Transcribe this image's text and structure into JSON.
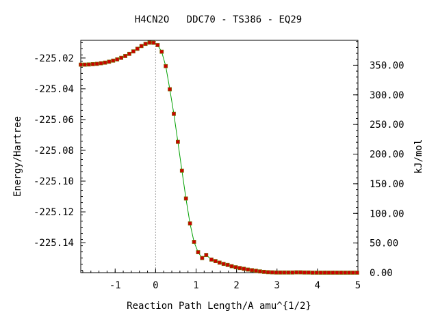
{
  "chart_data": {
    "type": "line",
    "title": "H4CN2O   DDC70 - TS386 - EQ29",
    "xlabel": "Reaction Path Length/A amu^{1/2}",
    "ylabel": "Energy/Hartree",
    "y2label": "kJ/mol",
    "xlim": [
      -1.85,
      5.0
    ],
    "ylim": [
      -225.1595,
      -225.0085
    ],
    "y2lim": [
      0.0,
      392.0
    ],
    "x_ticks": [
      -1,
      0,
      1,
      2,
      3,
      4,
      5
    ],
    "y_ticks": [
      -225.02,
      -225.04,
      -225.06,
      -225.08,
      -225.1,
      -225.12,
      -225.14
    ],
    "y2_ticks": [
      0.0,
      50.0,
      100.0,
      150.0,
      200.0,
      250.0,
      300.0,
      350.0
    ],
    "x_tick_labels": [
      "-1",
      "0",
      "1",
      "2",
      "3",
      "4",
      "5"
    ],
    "y_tick_labels": [
      "-225.02",
      "-225.04",
      "-225.06",
      "-225.08",
      "-225.10",
      "-225.12",
      "-225.14"
    ],
    "y2_tick_labels": [
      "0.00",
      "50.00",
      "100.00",
      "150.00",
      "200.00",
      "250.00",
      "300.00",
      "350.00"
    ],
    "ts_marker_x": 0,
    "grid": false,
    "line_color": "#00a000",
    "marker_color": "#cc0000",
    "marker_edge_color": "#806000",
    "series": [
      {
        "x": [
          -1.85,
          -1.75,
          -1.65,
          -1.55,
          -1.45,
          -1.35,
          -1.25,
          -1.15,
          -1.05,
          -0.95,
          -0.85,
          -0.75,
          -0.65,
          -0.55,
          -0.45,
          -0.35,
          -0.25,
          -0.15,
          -0.05,
          0.05,
          0.15,
          0.25,
          0.35,
          0.45,
          0.55,
          0.65,
          0.75,
          0.85,
          0.95,
          1.05,
          1.15,
          1.25,
          1.38,
          1.48,
          1.58,
          1.68,
          1.78,
          1.88,
          1.98,
          2.08,
          2.18,
          2.28,
          2.38,
          2.48,
          2.58,
          2.68,
          2.78,
          2.88,
          2.98,
          3.08,
          3.18,
          3.28,
          3.38,
          3.48,
          3.58,
          3.68,
          3.78,
          3.88,
          3.98,
          4.08,
          4.18,
          4.28,
          4.38,
          4.48,
          4.58,
          4.68,
          4.78,
          4.88,
          4.98
        ],
        "y": [
          -225.0243,
          -225.0243,
          -225.0242,
          -225.024,
          -225.0238,
          -225.0234,
          -225.023,
          -225.0224,
          -225.0217,
          -225.0209,
          -225.0199,
          -225.0187,
          -225.0173,
          -225.0157,
          -225.014,
          -225.0122,
          -225.0108,
          -225.01,
          -225.0101,
          -225.0116,
          -225.0159,
          -225.0253,
          -225.0403,
          -225.0563,
          -225.0745,
          -225.0932,
          -225.1113,
          -225.1275,
          -225.1395,
          -225.1462,
          -225.15,
          -225.148,
          -225.151,
          -225.152,
          -225.153,
          -225.1538,
          -225.1545,
          -225.1553,
          -225.156,
          -225.1565,
          -225.157,
          -225.1575,
          -225.1579,
          -225.1583,
          -225.1587,
          -225.159,
          -225.1592,
          -225.1593,
          -225.1594,
          -225.1594,
          -225.1594,
          -225.1594,
          -225.1594,
          -225.1593,
          -225.1593,
          -225.1594,
          -225.1594,
          -225.1595,
          -225.1595,
          -225.1595,
          -225.1595,
          -225.1595,
          -225.1595,
          -225.1595,
          -225.1595,
          -225.1595,
          -225.1595,
          -225.1595,
          -225.1595
        ]
      }
    ]
  }
}
